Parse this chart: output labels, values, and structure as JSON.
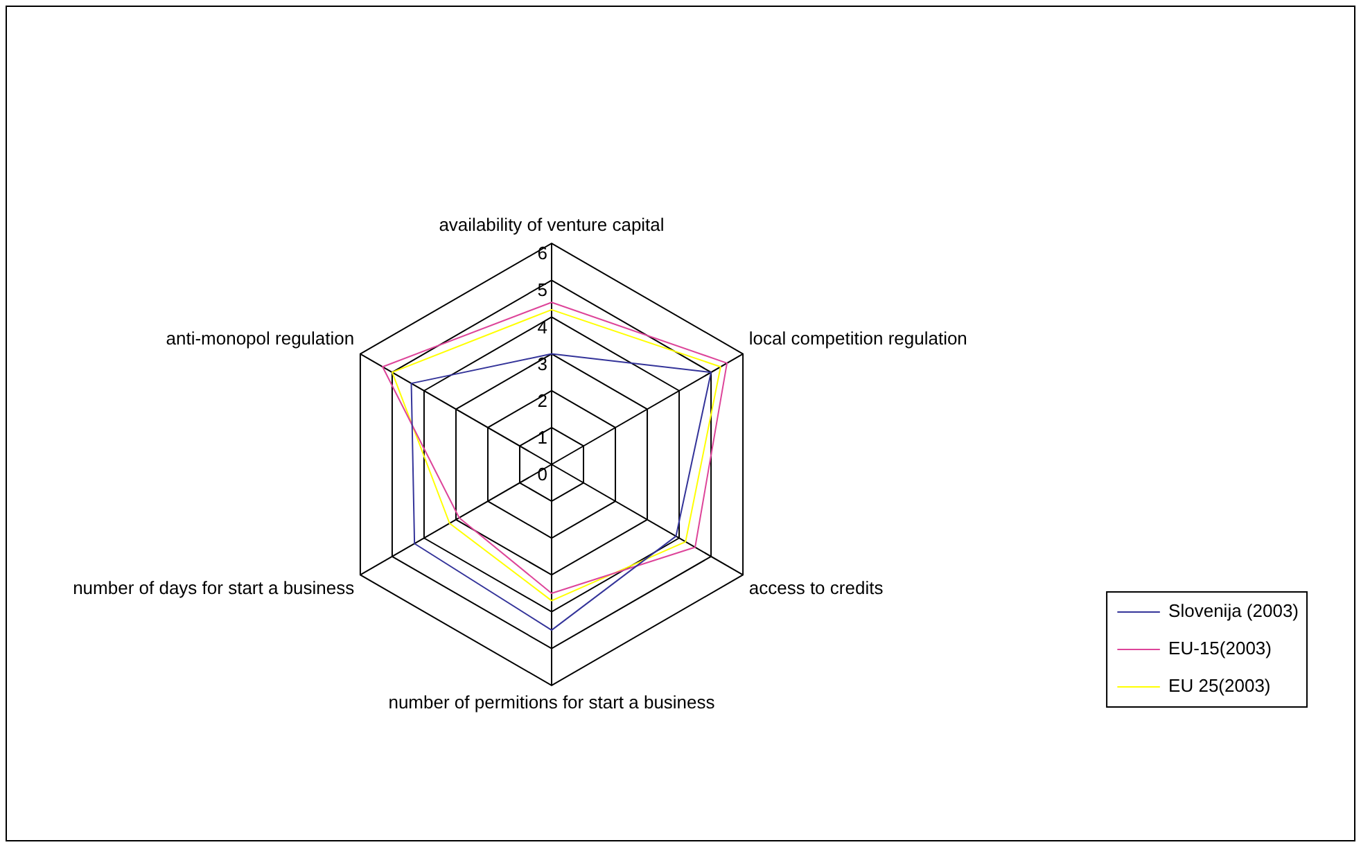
{
  "chart_data": {
    "type": "radar",
    "categories": [
      "availability of venture capital",
      "local competition regulation",
      "access to credits",
      "number of permitions for start a business",
      "number of days for start a business",
      "anti-monopol regulation"
    ],
    "series": [
      {
        "name": "Slovenija (2003)",
        "color": "#333399",
        "values": [
          3.0,
          5.0,
          3.9,
          4.5,
          4.3,
          4.4
        ]
      },
      {
        "name": "EU-15(2003)",
        "color": "#dd4499",
        "values": [
          4.4,
          5.5,
          4.5,
          3.5,
          2.9,
          5.3
        ]
      },
      {
        "name": "EU 25(2003)",
        "color": "#ffff00",
        "values": [
          4.2,
          5.3,
          4.2,
          3.7,
          3.2,
          5.0
        ]
      }
    ],
    "ylim": [
      0,
      6
    ],
    "yticks": [
      0,
      1,
      2,
      3,
      4,
      5,
      6
    ],
    "grid": true,
    "legend": "right",
    "marker": "none"
  }
}
